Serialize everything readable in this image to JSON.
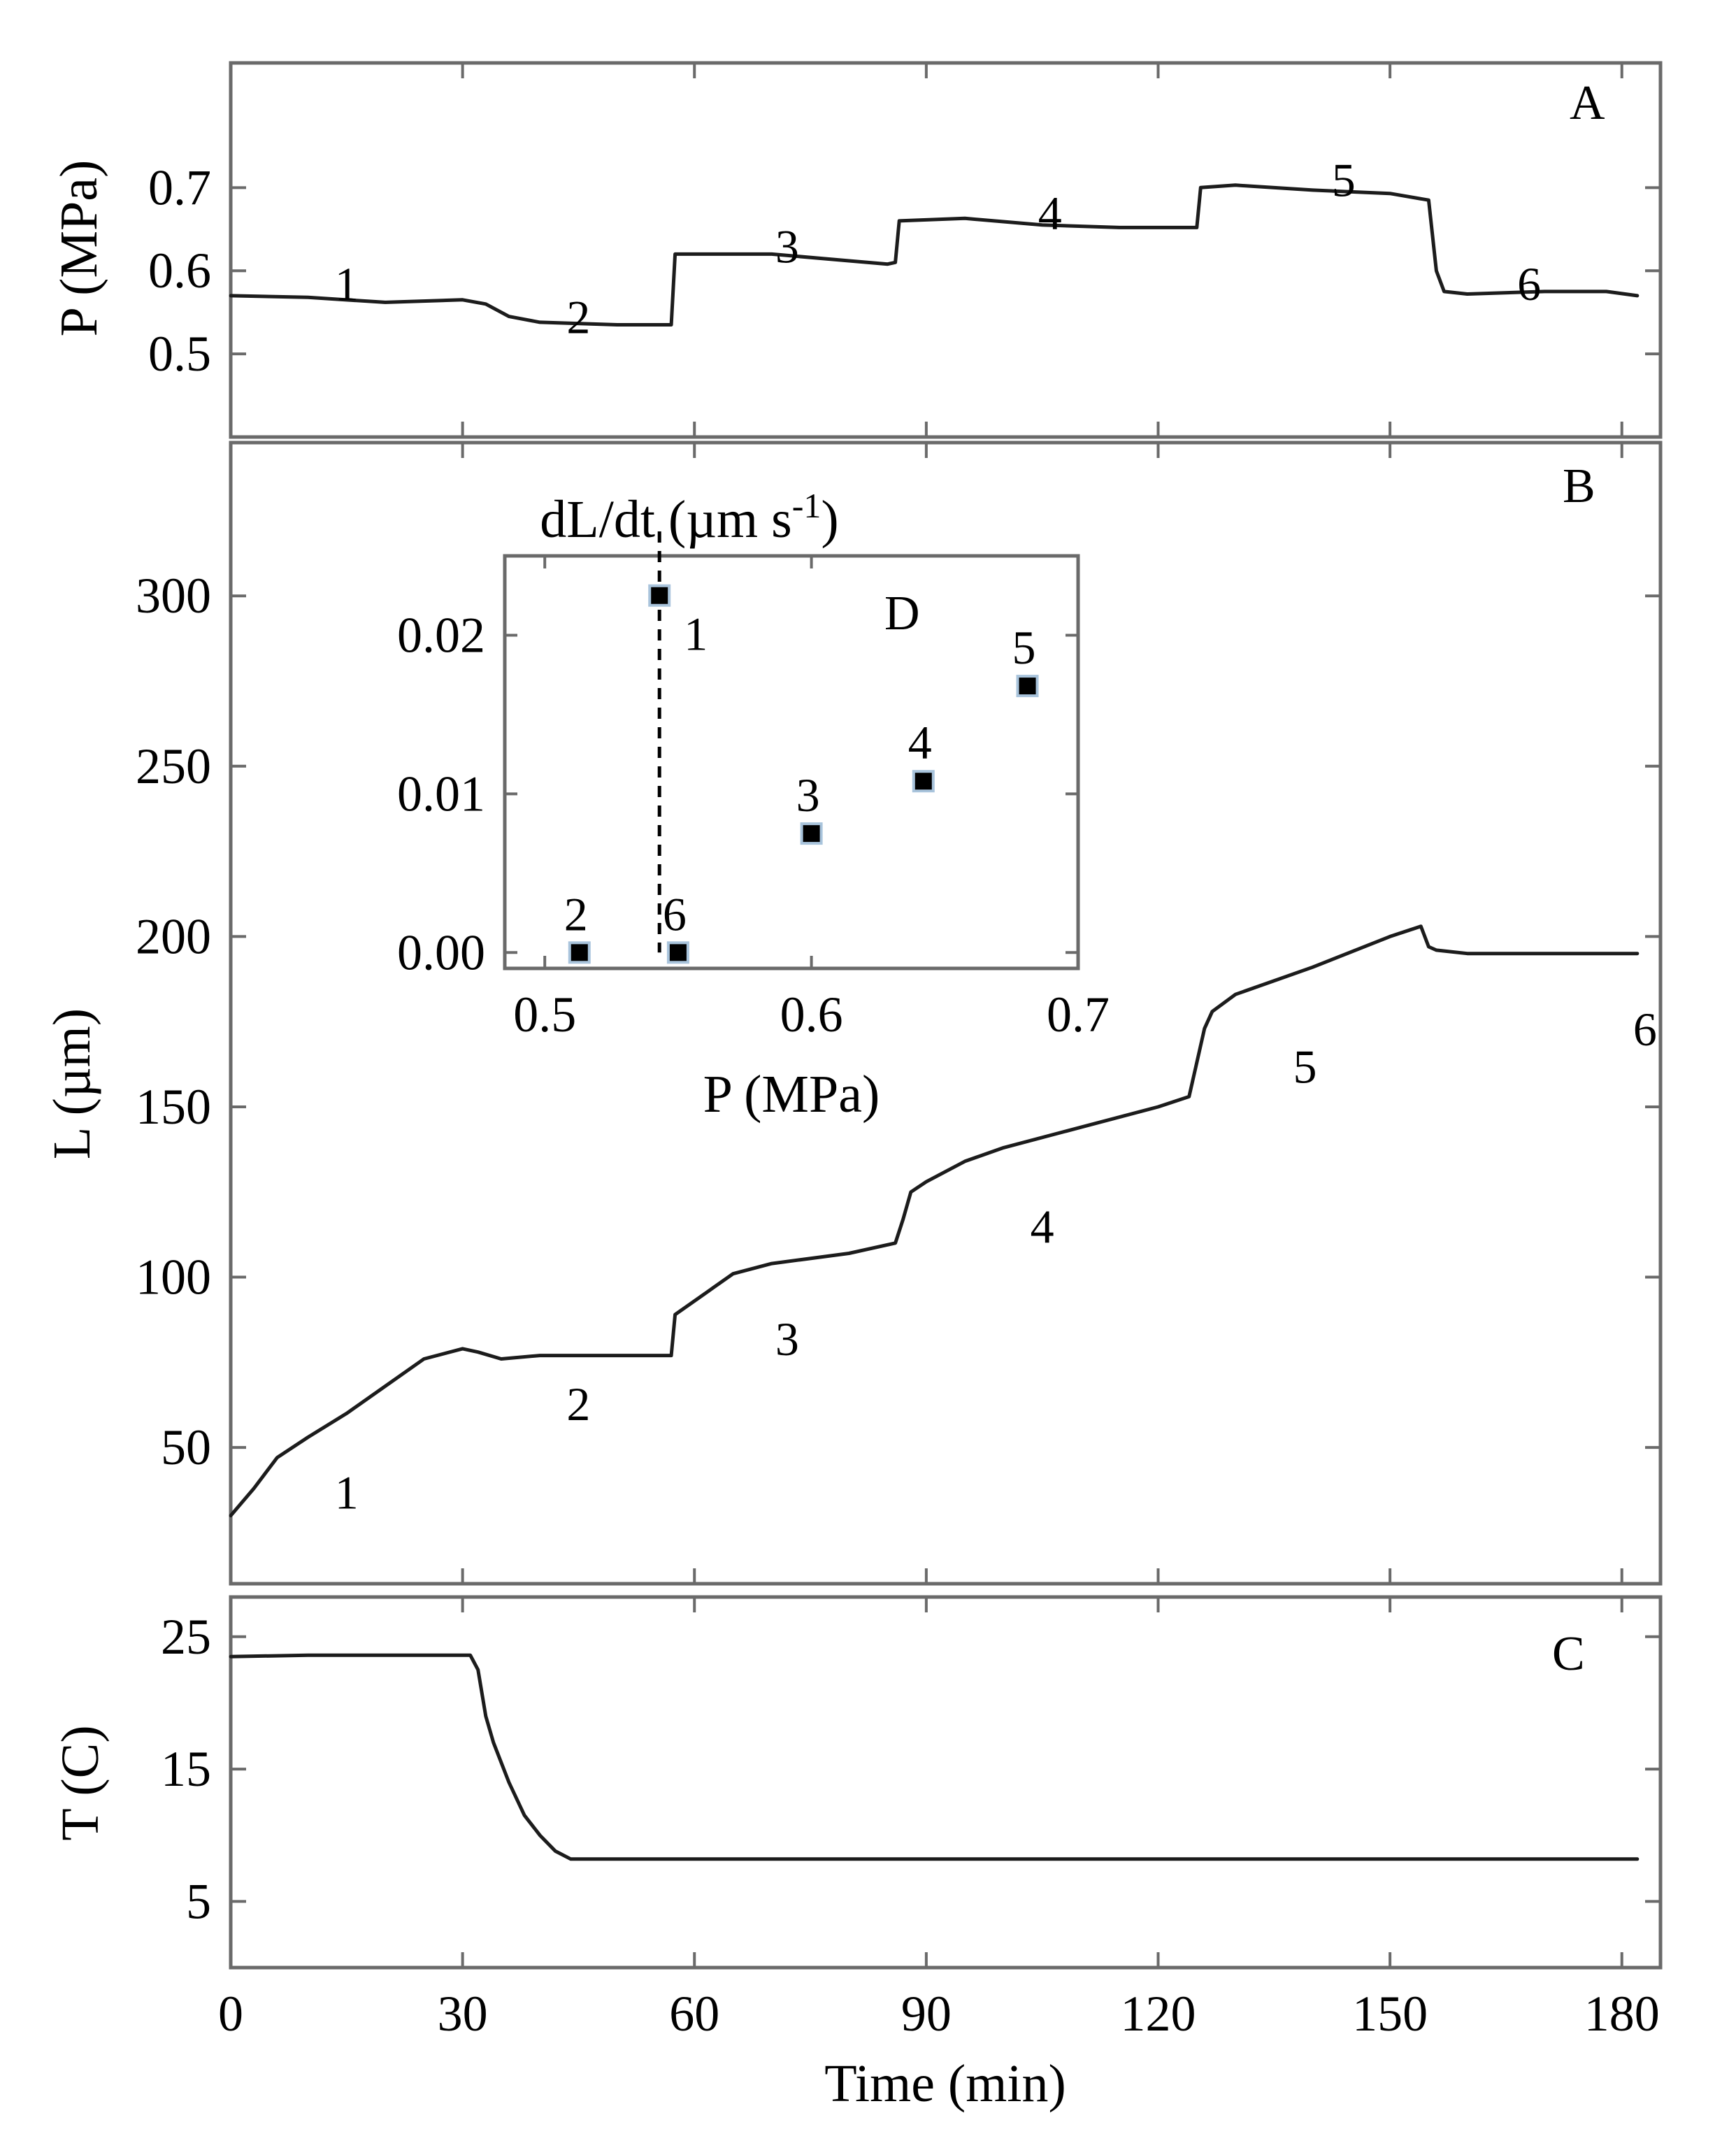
{
  "chart_data": [
    {
      "id": "A",
      "type": "line",
      "panel_label": "A",
      "ylabel": "P (MPa)",
      "xlim": [
        0,
        185
      ],
      "ylim": [
        0.4,
        0.85
      ],
      "yticks": [
        0.5,
        0.6,
        0.7
      ],
      "ytick_labels": [
        "0.5",
        "0.6",
        "0.7"
      ],
      "xticks": [
        30,
        60,
        90,
        120,
        150,
        180
      ],
      "series": [
        {
          "name": "pressure",
          "x": [
            0,
            10,
            20,
            30,
            33,
            36,
            40,
            50,
            57,
            57.5,
            60,
            70,
            80,
            85,
            86,
            86.5,
            95,
            105,
            115,
            125,
            125.5,
            130,
            140,
            150,
            155,
            156,
            157,
            160,
            170,
            178,
            182
          ],
          "y": [
            0.57,
            0.568,
            0.562,
            0.565,
            0.56,
            0.545,
            0.538,
            0.535,
            0.535,
            0.62,
            0.62,
            0.62,
            0.612,
            0.608,
            0.61,
            0.66,
            0.663,
            0.655,
            0.652,
            0.652,
            0.7,
            0.703,
            0.697,
            0.693,
            0.685,
            0.6,
            0.575,
            0.572,
            0.575,
            0.575,
            0.57
          ]
        }
      ],
      "annotations": [
        {
          "label": "1",
          "x": 15,
          "y": 0.585
        },
        {
          "label": "2",
          "x": 45,
          "y": 0.545
        },
        {
          "label": "3",
          "x": 72,
          "y": 0.63
        },
        {
          "label": "4",
          "x": 106,
          "y": 0.67
        },
        {
          "label": "5",
          "x": 144,
          "y": 0.71
        },
        {
          "label": "6",
          "x": 168,
          "y": 0.585
        }
      ]
    },
    {
      "id": "B",
      "type": "line",
      "panel_label": "B",
      "ylabel": "L (µm)",
      "xlim": [
        0,
        185
      ],
      "ylim": [
        10,
        345
      ],
      "yticks": [
        50,
        100,
        150,
        200,
        250,
        300
      ],
      "ytick_labels": [
        "50",
        "100",
        "150",
        "200",
        "250",
        "300"
      ],
      "xticks": [
        30,
        60,
        90,
        120,
        150,
        180
      ],
      "series": [
        {
          "name": "length",
          "x": [
            0,
            3,
            6,
            10,
            15,
            20,
            25,
            30,
            32,
            35,
            40,
            50,
            57,
            57.5,
            60,
            65,
            70,
            80,
            86,
            87,
            88,
            90,
            95,
            100,
            110,
            120,
            124,
            125,
            126,
            127,
            130,
            140,
            150,
            154,
            155,
            156,
            160,
            170,
            182
          ],
          "y": [
            30,
            38,
            47,
            53,
            60,
            68,
            76,
            79,
            78,
            76,
            77,
            77,
            77,
            89,
            93,
            101,
            104,
            107,
            110,
            117,
            125,
            128,
            134,
            138,
            144,
            150,
            153,
            163,
            173,
            178,
            183,
            191,
            200,
            203,
            197,
            196,
            195,
            195,
            195
          ]
        }
      ],
      "annotations": [
        {
          "label": "1",
          "x": 15,
          "y": 37
        },
        {
          "label": "2",
          "x": 45,
          "y": 63
        },
        {
          "label": "3",
          "x": 72,
          "y": 82
        },
        {
          "label": "4",
          "x": 105,
          "y": 115
        },
        {
          "label": "5",
          "x": 139,
          "y": 162
        },
        {
          "label": "6",
          "x": 183,
          "y": 173
        }
      ]
    },
    {
      "id": "D",
      "type": "scatter",
      "panel_label": "D",
      "title": "dL/dt (µm s-1)",
      "xlabel": "P (MPa)",
      "xlim": [
        0.485,
        0.7
      ],
      "ylim": [
        -0.001,
        0.025
      ],
      "xticks": [
        0.5,
        0.6,
        0.7
      ],
      "xtick_labels": [
        "0.5",
        "0.6",
        "0.7"
      ],
      "yticks": [
        0.0,
        0.01,
        0.02
      ],
      "ytick_labels": [
        "0.00",
        "0.01",
        "0.02"
      ],
      "vline_x": 0.543,
      "points": [
        {
          "label": "1",
          "x": 0.543,
          "y": 0.0225
        },
        {
          "label": "2",
          "x": 0.513,
          "y": 0.0
        },
        {
          "label": "6",
          "x": 0.55,
          "y": 0.0
        },
        {
          "label": "3",
          "x": 0.6,
          "y": 0.0075
        },
        {
          "label": "4",
          "x": 0.642,
          "y": 0.0108
        },
        {
          "label": "5",
          "x": 0.681,
          "y": 0.0168
        }
      ]
    },
    {
      "id": "C",
      "type": "line",
      "panel_label": "C",
      "ylabel": "T (C)",
      "xlabel": "Time (min)",
      "xlim": [
        0,
        185
      ],
      "ylim": [
        0,
        28
      ],
      "yticks": [
        5,
        15,
        25
      ],
      "ytick_labels": [
        "5",
        "15",
        "25"
      ],
      "xticks": [
        0,
        30,
        60,
        90,
        120,
        150,
        180
      ],
      "xtick_labels": [
        "0",
        "30",
        "60",
        "90",
        "120",
        "150",
        "180"
      ],
      "series": [
        {
          "name": "temperature",
          "x": [
            0,
            10,
            20,
            31,
            32,
            33,
            34,
            36,
            38,
            40,
            42,
            44,
            50,
            100,
            150,
            182
          ],
          "y": [
            23.5,
            23.6,
            23.6,
            23.6,
            22.5,
            19,
            17,
            14,
            11.5,
            10,
            8.8,
            8.2,
            8.2,
            8.2,
            8.2,
            8.2
          ]
        }
      ]
    }
  ]
}
